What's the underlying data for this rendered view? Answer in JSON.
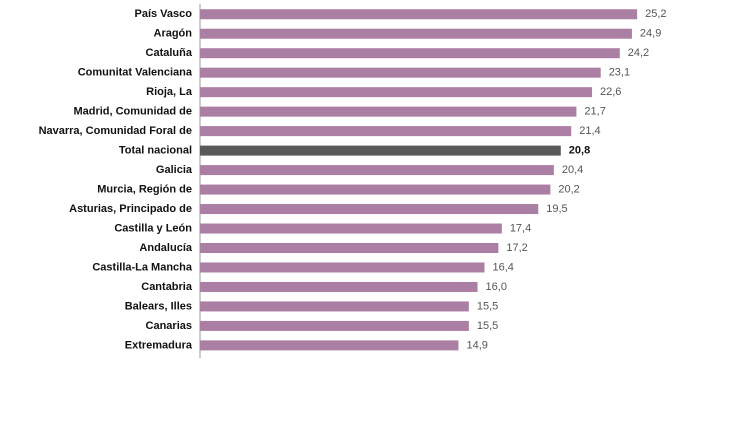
{
  "chart_data": {
    "type": "hbar",
    "categories": [
      "País Vasco",
      "Aragón",
      "Cataluña",
      "Comunitat Valenciana",
      "Rioja, La",
      "Madrid, Comunidad de",
      "Navarra, Comunidad Foral de",
      "Total nacional",
      "Galicia",
      "Murcia, Región de",
      "Asturias, Principado de",
      "Castilla y León",
      "Andalucía",
      "Castilla-La Mancha",
      "Cantabria",
      "Balears, Illes",
      "Canarias",
      "Extremadura"
    ],
    "values": [
      25.2,
      24.9,
      24.2,
      23.1,
      22.6,
      21.7,
      21.4,
      20.8,
      20.4,
      20.2,
      19.5,
      17.4,
      17.2,
      16.4,
      16.0,
      15.5,
      15.5,
      14.9
    ],
    "value_labels": [
      "25,2",
      "24,9",
      "24,2",
      "23,1",
      "22,6",
      "21,7",
      "21,4",
      "20,8",
      "20,4",
      "20,2",
      "19,5",
      "17,4",
      "17,2",
      "16,4",
      "16,0",
      "15,5",
      "15,5",
      "14,9"
    ],
    "color": "#ab7ea3",
    "highlight": "Total nacional",
    "highlight_color": "#595959",
    "xlim": [
      0,
      26
    ]
  }
}
